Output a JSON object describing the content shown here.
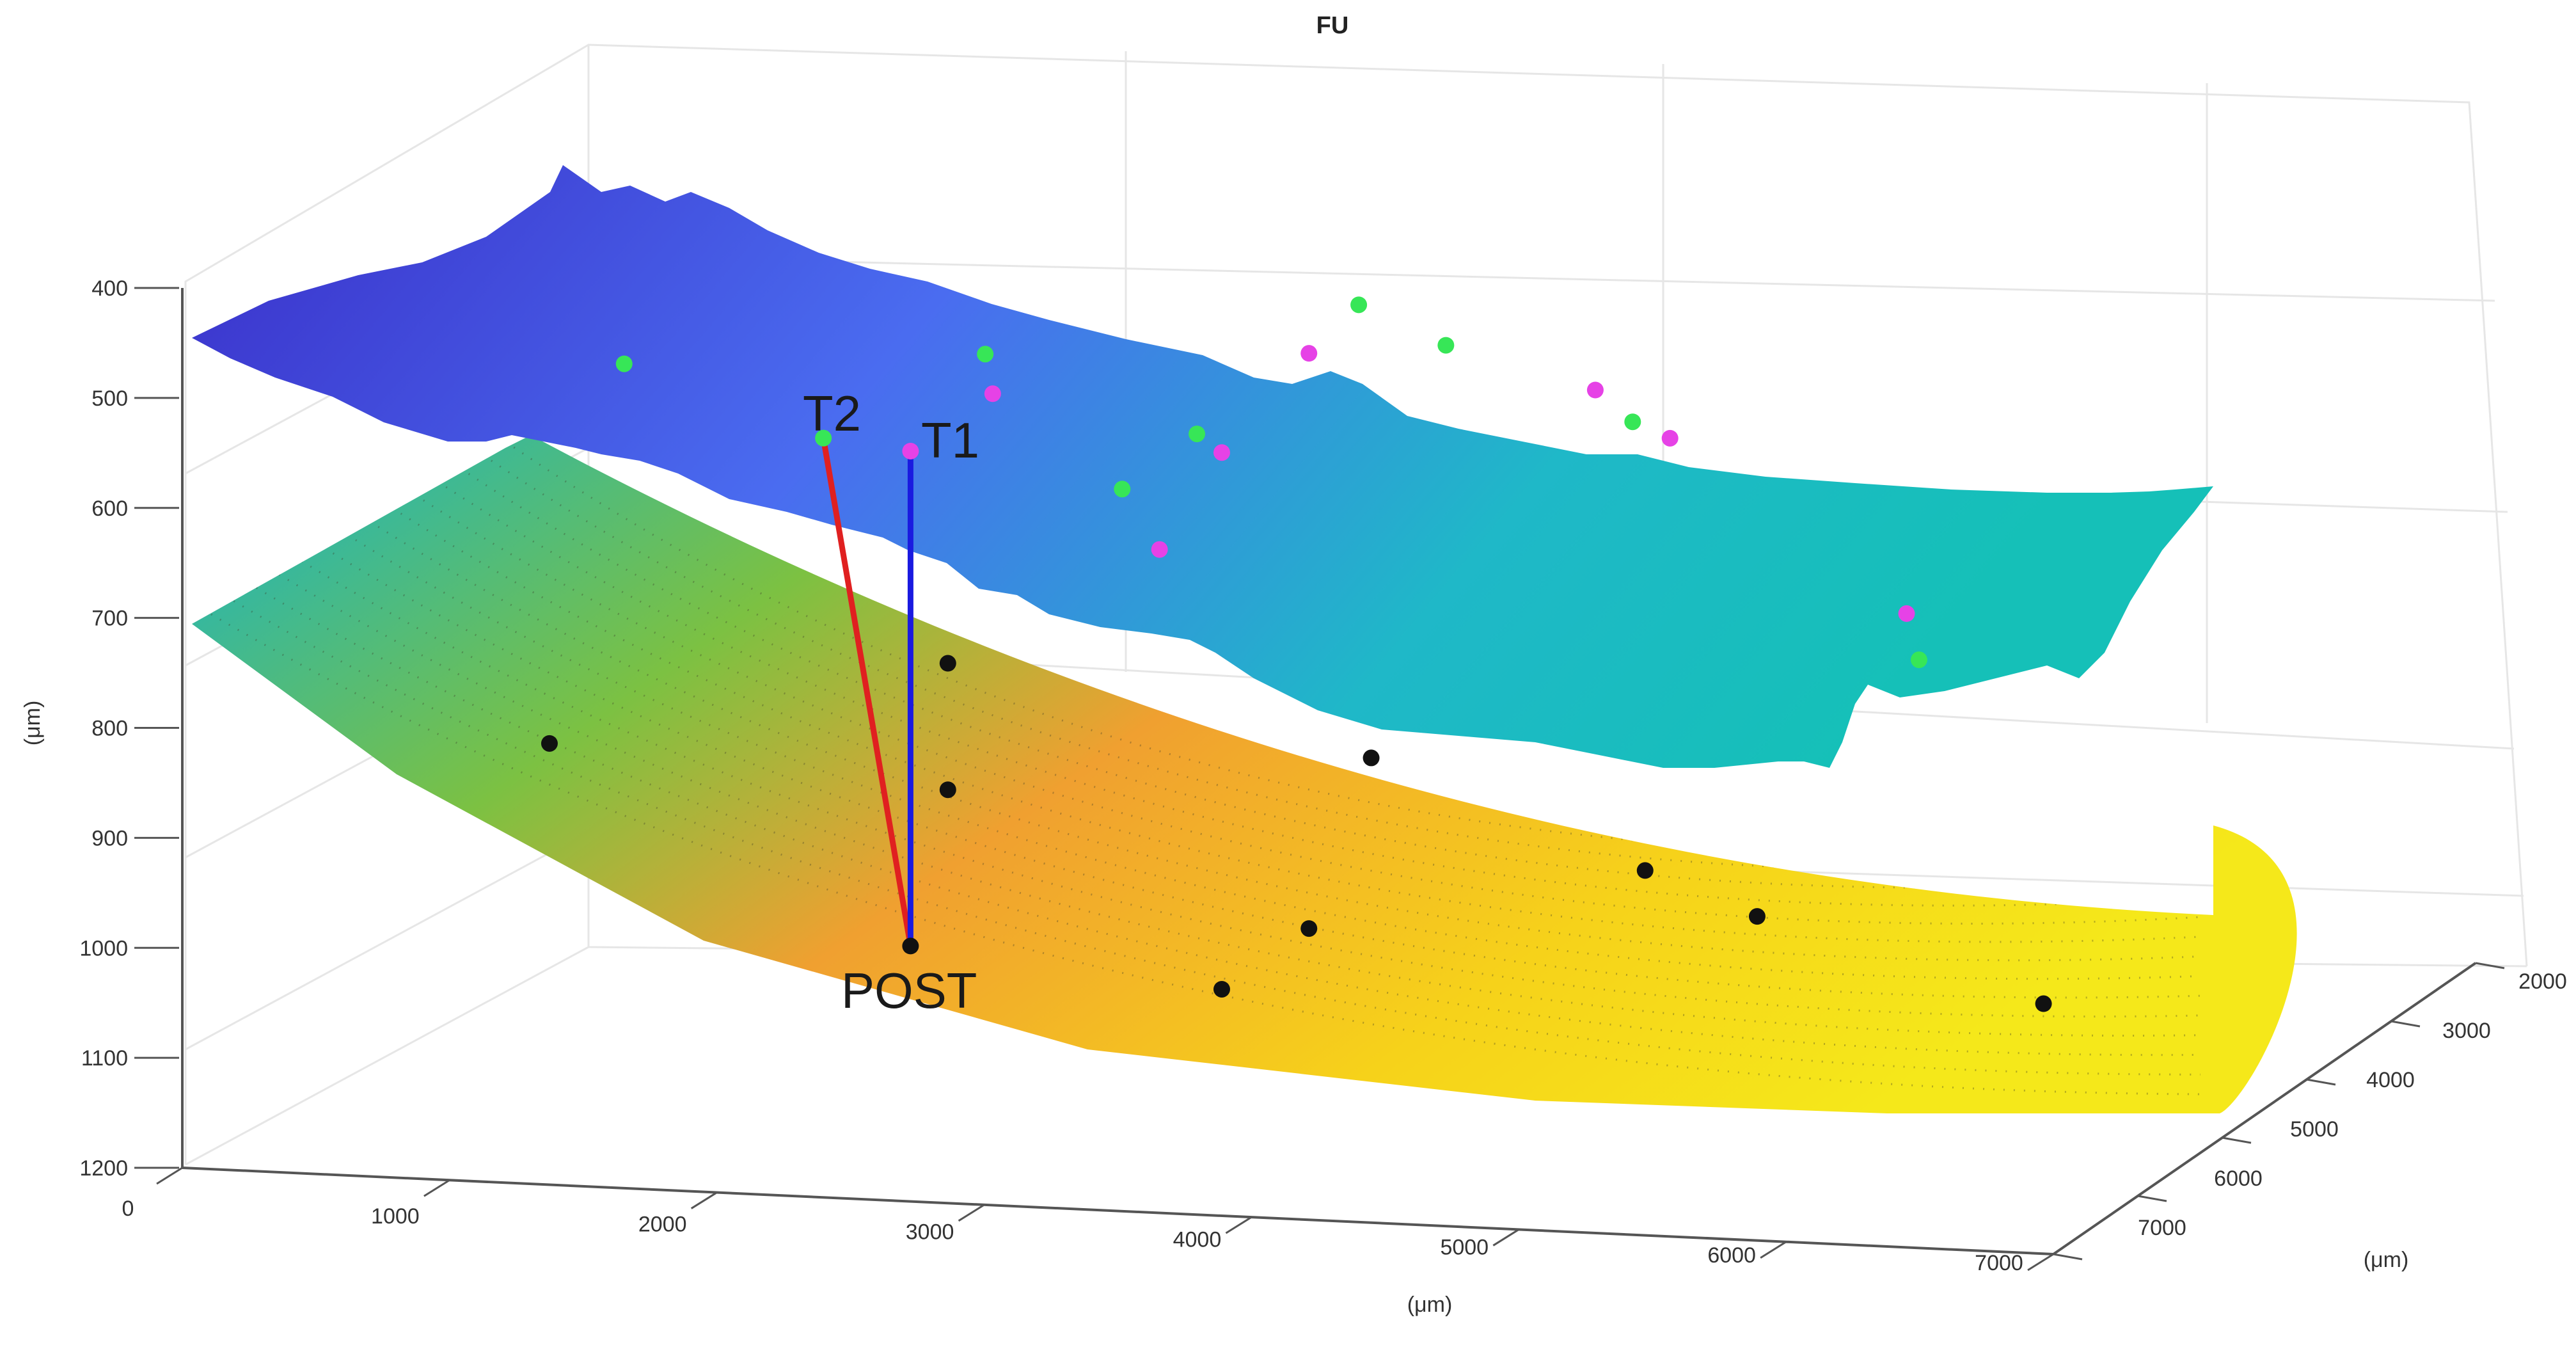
{
  "chart_data": {
    "type": "surface3d",
    "title": "FU",
    "xlabel": "(μm)",
    "ylabel": "(μm)",
    "zlabel": "(μm)",
    "x_ticks": [
      "0",
      "1000",
      "2000",
      "3000",
      "4000",
      "5000",
      "6000",
      "7000"
    ],
    "y_ticks": [
      "2000",
      "3000",
      "4000",
      "5000",
      "6000",
      "7000"
    ],
    "z_ticks": [
      "400",
      "500",
      "600",
      "700",
      "800",
      "900",
      "1000",
      "1100",
      "1200"
    ],
    "xlim": [
      0,
      7000
    ],
    "ylim": [
      2000,
      7000
    ],
    "zlim": [
      400,
      1200
    ],
    "z_reversed": true,
    "grid": true,
    "surfaces": [
      {
        "role": "upper",
        "colormap": "parula",
        "colors": [
          "#3a2fc9",
          "#4a6cf0",
          "#1fb8c8"
        ]
      },
      {
        "role": "lower",
        "colormap": "parula",
        "colors": [
          "#22b5b9",
          "#7cc142",
          "#f0a030",
          "#f5e21a"
        ]
      }
    ],
    "series": [
      {
        "name": "",
        "color": "#37e657",
        "points": [
          {
            "x": 1800,
            "z": 470
          },
          {
            "x": 3250,
            "z": 462
          },
          {
            "x": 4100,
            "z": 535
          },
          {
            "x": 3800,
            "z": 585
          },
          {
            "x": 2600,
            "z": 538
          },
          {
            "x": 4750,
            "z": 418
          },
          {
            "x": 5100,
            "z": 455
          },
          {
            "x": 5850,
            "z": 525
          },
          {
            "x": 7000,
            "z": 742
          }
        ]
      },
      {
        "name": "",
        "color": "#e642e6",
        "points": [
          {
            "x": 3280,
            "z": 498
          },
          {
            "x": 4200,
            "z": 552
          },
          {
            "x": 3950,
            "z": 640
          },
          {
            "x": 4550,
            "z": 462
          },
          {
            "x": 5700,
            "z": 496
          },
          {
            "x": 6000,
            "z": 540
          },
          {
            "x": 6950,
            "z": 700
          },
          {
            "x": 2950,
            "z": 550
          }
        ]
      },
      {
        "name": "",
        "color": "#111111",
        "points": [
          {
            "x": 1500,
            "z": 815
          },
          {
            "x": 3100,
            "z": 743
          },
          {
            "x": 3100,
            "z": 858
          },
          {
            "x": 4800,
            "z": 830
          },
          {
            "x": 5900,
            "z": 933
          },
          {
            "x": 6350,
            "z": 975
          },
          {
            "x": 4550,
            "z": 985
          },
          {
            "x": 4200,
            "z": 1040
          },
          {
            "x": 7500,
            "z": 1055
          },
          {
            "x": 2950,
            "z": 1000
          }
        ]
      }
    ],
    "lines": [
      {
        "label": "T2",
        "color": "#e02020",
        "from": {
          "x": 2600,
          "z": 538
        },
        "to": {
          "x": 2950,
          "z": 1000
        }
      },
      {
        "label": "T1",
        "color": "#1a1ae0",
        "from": {
          "x": 2950,
          "z": 550
        },
        "to": {
          "x": 2950,
          "z": 1000
        }
      }
    ],
    "annotations": [
      "T2",
      "T1",
      "POST"
    ]
  }
}
